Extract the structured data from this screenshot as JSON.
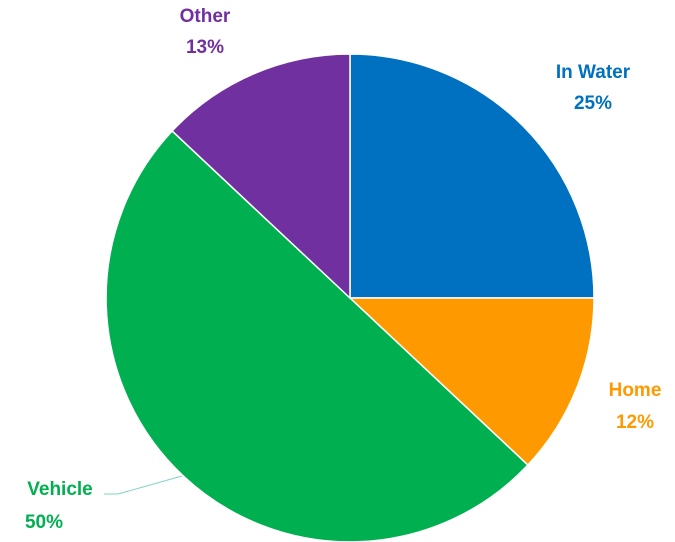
{
  "chart_data": {
    "type": "pie",
    "title": "",
    "slices": [
      {
        "label": "In Water",
        "percent_label": "25%",
        "value": 25,
        "color": "#0070C0"
      },
      {
        "label": "Home",
        "percent_label": "12%",
        "value": 12,
        "color": "#FF9900"
      },
      {
        "label": "Vehicle",
        "percent_label": "50%",
        "value": 50,
        "color": "#00B050"
      },
      {
        "label": "Other",
        "percent_label": "13%",
        "value": 13,
        "color": "#7030A0"
      }
    ],
    "start_angle": "12 o'clock",
    "direction": "clockwise",
    "legend": "none",
    "data_labels": "outside, category name and percentage"
  }
}
